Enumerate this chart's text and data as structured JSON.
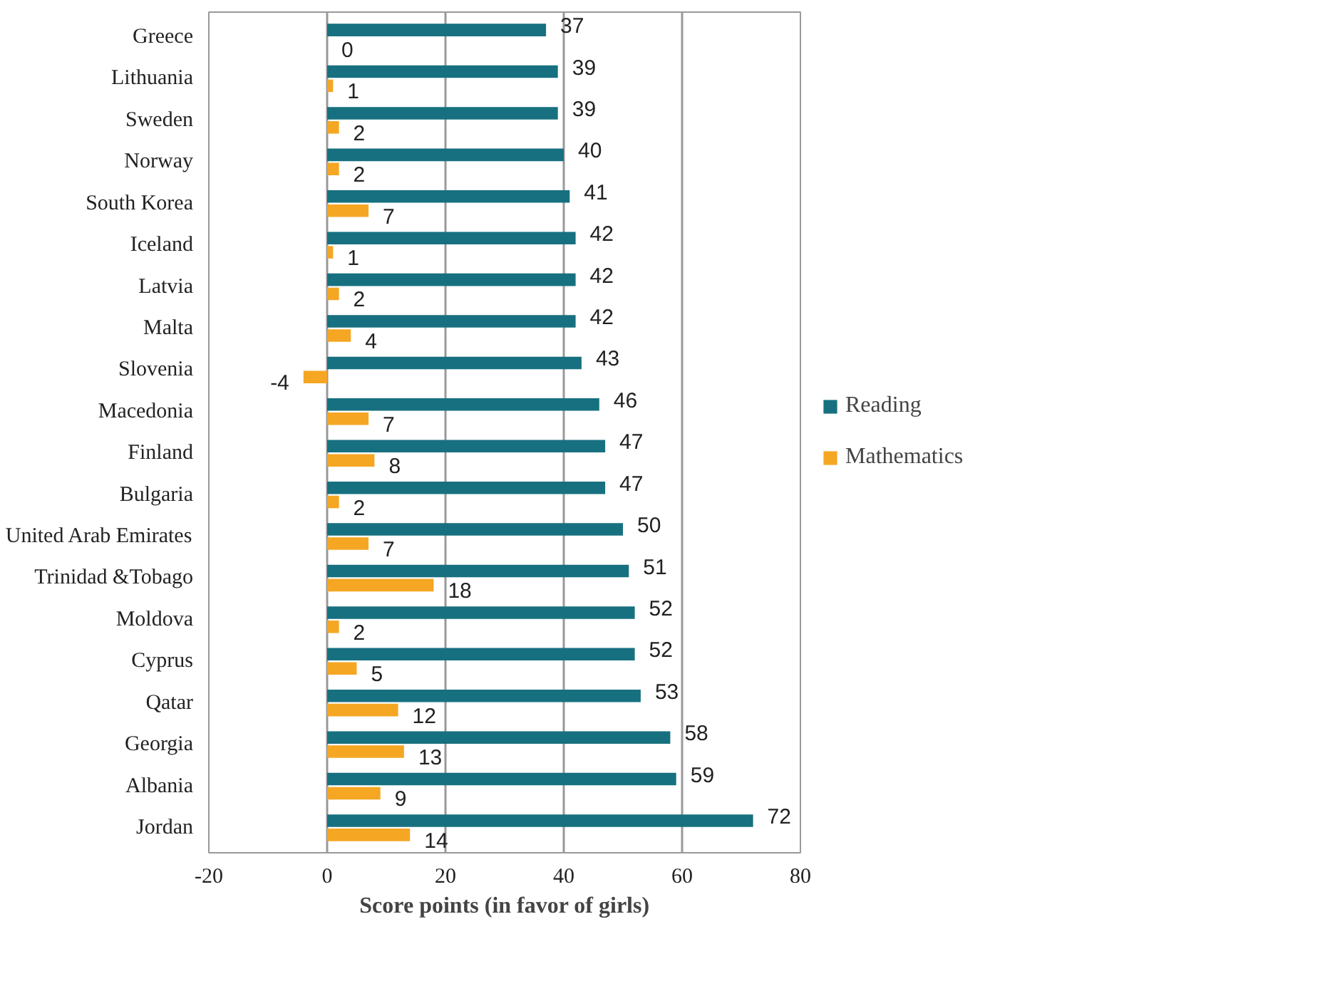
{
  "chart_data": {
    "type": "bar",
    "orientation": "horizontal",
    "xlabel": "Score points (in favor of girls)",
    "categories": [
      "Greece",
      "Lithuania",
      "Sweden",
      "Norway",
      "South Korea",
      "Iceland",
      "Latvia",
      "Malta",
      "Slovenia",
      "Macedonia",
      "Finland",
      "Bulgaria",
      "United Arab Emirates",
      "Trinidad &Tobago",
      "Moldova",
      "Cyprus",
      "Qatar",
      "Georgia",
      "Albania",
      "Jordan"
    ],
    "series": [
      {
        "name": "Reading",
        "color": "#17707f",
        "values": [
          37,
          39,
          39,
          40,
          41,
          42,
          42,
          42,
          43,
          46,
          47,
          47,
          50,
          51,
          52,
          52,
          53,
          58,
          59,
          72
        ]
      },
      {
        "name": "Mathematics",
        "color": "#f5a623",
        "values": [
          0,
          1,
          2,
          2,
          7,
          1,
          2,
          4,
          -4,
          7,
          8,
          2,
          7,
          18,
          2,
          5,
          12,
          13,
          9,
          14
        ]
      }
    ],
    "xlim": [
      -20,
      80
    ],
    "xticks": [
      -20,
      0,
      20,
      40,
      60,
      80
    ],
    "grid": "x",
    "legend": "right",
    "data_labels": true
  }
}
